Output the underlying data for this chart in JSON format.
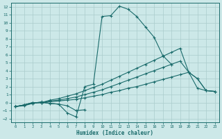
{
  "xlabel": "Humidex (Indice chaleur)",
  "bg_color": "#cce8e8",
  "grid_color": "#aacccc",
  "line_color": "#1a6b6b",
  "xlim": [
    -0.5,
    23.5
  ],
  "ylim": [
    -2.5,
    12.5
  ],
  "xticks": [
    0,
    1,
    2,
    3,
    4,
    5,
    6,
    7,
    8,
    9,
    10,
    11,
    12,
    13,
    14,
    15,
    16,
    17,
    18,
    19,
    20,
    21,
    22,
    23
  ],
  "yticks": [
    -2,
    -1,
    0,
    1,
    2,
    3,
    4,
    5,
    6,
    7,
    8,
    9,
    10,
    11,
    12
  ],
  "curve1_x": [
    0,
    1,
    2,
    3,
    4,
    5,
    6,
    7,
    8,
    9,
    10,
    11,
    12,
    13,
    14,
    15,
    16,
    17,
    18,
    19,
    20,
    21,
    22,
    23
  ],
  "curve1_y": [
    -0.5,
    -0.3,
    -0.1,
    0.1,
    -0.1,
    -0.2,
    -1.3,
    -1.8,
    2.0,
    2.3,
    10.8,
    10.9,
    12.1,
    11.7,
    10.8,
    9.5,
    8.2,
    5.9,
    4.8,
    null,
    null,
    null,
    null,
    null
  ],
  "curve2_x": [
    0,
    1,
    2,
    3,
    4,
    5,
    6,
    7,
    8,
    9,
    10,
    11,
    12,
    13,
    14,
    15,
    16,
    17,
    18,
    19,
    20,
    21,
    22,
    23
  ],
  "curve2_y": [
    -0.5,
    -0.4,
    -0.1,
    0.0,
    -0.1,
    -0.2,
    -0.4,
    -1.0,
    -0.9,
    null,
    null,
    null,
    null,
    null,
    null,
    null,
    null,
    null,
    null,
    null,
    null,
    null,
    null,
    null
  ],
  "curve3_x": [
    0,
    1,
    2,
    3,
    4,
    5,
    6,
    7,
    8,
    9,
    10,
    11,
    12,
    13,
    14,
    15,
    16,
    17,
    18,
    19,
    20,
    21,
    22,
    23
  ],
  "curve3_y": [
    -0.5,
    -0.3,
    0.0,
    0.0,
    0.1,
    0.2,
    0.3,
    0.4,
    0.6,
    0.8,
    1.0,
    1.3,
    1.5,
    1.8,
    2.0,
    2.3,
    2.6,
    2.9,
    3.2,
    3.5,
    3.8,
    1.8,
    1.5,
    1.4
  ],
  "curve4_x": [
    0,
    1,
    2,
    3,
    4,
    5,
    6,
    7,
    8,
    9,
    10,
    11,
    12,
    13,
    14,
    15,
    16,
    17,
    18,
    19,
    20,
    21,
    22,
    23
  ],
  "curve4_y": [
    -0.5,
    -0.3,
    0.0,
    0.0,
    0.2,
    0.3,
    0.5,
    0.7,
    1.0,
    1.3,
    1.6,
    2.0,
    2.4,
    2.8,
    3.2,
    3.6,
    4.0,
    4.4,
    4.8,
    5.2,
    3.8,
    3.0,
    1.5,
    1.4
  ],
  "curve5_x": [
    0,
    1,
    2,
    3,
    4,
    5,
    6,
    7,
    8,
    9,
    10,
    11,
    12,
    13,
    14,
    15,
    16,
    17,
    18,
    19,
    20,
    21,
    22,
    23
  ],
  "curve5_y": [
    -0.5,
    -0.3,
    0.0,
    0.0,
    0.3,
    0.5,
    0.8,
    1.1,
    1.5,
    1.9,
    2.3,
    2.8,
    3.3,
    3.8,
    4.3,
    4.8,
    5.3,
    5.8,
    6.3,
    6.8,
    3.8,
    3.0,
    1.5,
    1.4
  ]
}
